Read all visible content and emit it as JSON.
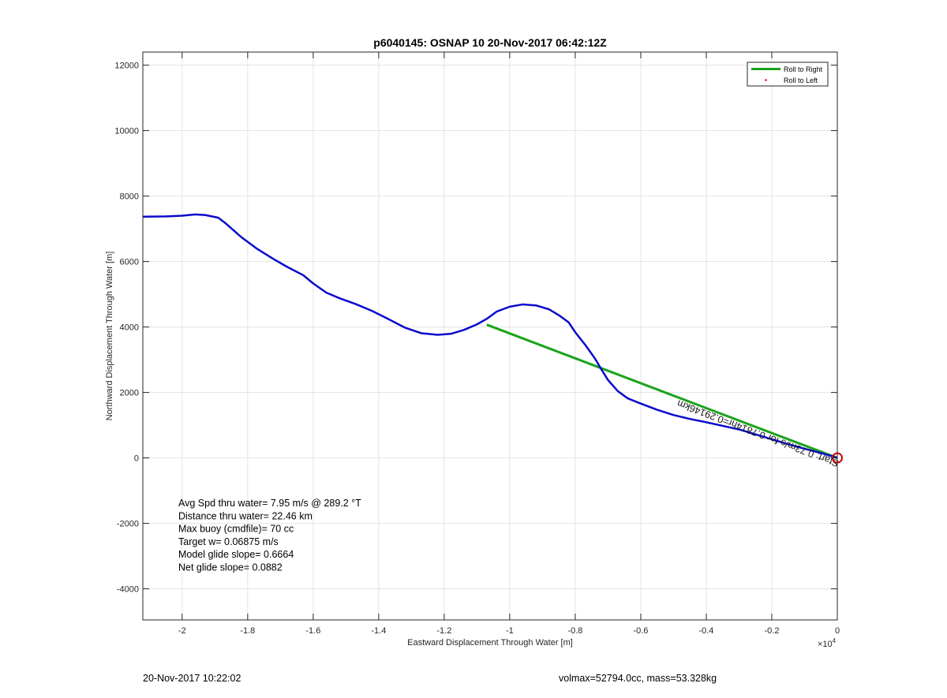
{
  "chart_data": {
    "type": "line",
    "title": "p6040145: OSNAP 10 20-Nov-2017 06:42:12Z",
    "xlabel": "Eastward Displacement Through Water [m]",
    "ylabel": "Northward Displacement Through Water [m]",
    "x_exponent_label": "×10",
    "x_exponent_power": "4",
    "xlim": [
      -2.12,
      0
    ],
    "ylim": [
      -4950,
      12400
    ],
    "x_ticks": [
      -2,
      -1.8,
      -1.6,
      -1.4,
      -1.2,
      -1,
      -0.8,
      -0.6,
      -0.4,
      -0.2,
      0
    ],
    "x_tick_labels": [
      "-2",
      "-1.8",
      "-1.6",
      "-1.4",
      "-1.2",
      "-1",
      "-0.8",
      "-0.6",
      "-0.4",
      "-0.2",
      "0"
    ],
    "y_ticks": [
      -4000,
      -2000,
      0,
      2000,
      4000,
      6000,
      8000,
      10000,
      12000
    ],
    "y_tick_labels": [
      "-4000",
      "-2000",
      "0",
      "2000",
      "4000",
      "6000",
      "8000",
      "10000",
      "12000"
    ],
    "grid": true,
    "legend_placement": "top-right",
    "series": [
      {
        "name": "Roll to Right",
        "color": "#1aa31a",
        "x": [
          -1.07,
          0
        ],
        "y": [
          4070,
          0
        ]
      },
      {
        "name": "Roll to Left",
        "color": "#ff0000",
        "marker": "dot",
        "x": [],
        "y": []
      },
      {
        "color": "#0a0acc",
        "x": [
          -2.12,
          -2.05,
          -2.0,
          -1.96,
          -1.93,
          -1.89,
          -1.87,
          -1.82,
          -1.77,
          -1.72,
          -1.68,
          -1.63,
          -1.6,
          -1.56,
          -1.52,
          -1.47,
          -1.42,
          -1.37,
          -1.32,
          -1.27,
          -1.22,
          -1.18,
          -1.14,
          -1.1,
          -1.07,
          -1.04,
          -1.0,
          -0.96,
          -0.92,
          -0.88,
          -0.85,
          -0.82,
          -0.8,
          -0.77,
          -0.74,
          -0.72,
          -0.7,
          -0.67,
          -0.64,
          -0.6,
          -0.55,
          -0.5,
          -0.45,
          -0.4,
          -0.35,
          -0.3,
          -0.25,
          -0.2,
          -0.15,
          -0.1,
          -0.05,
          -0.02,
          0
        ],
        "y": [
          7370,
          7380,
          7400,
          7440,
          7420,
          7340,
          7190,
          6750,
          6380,
          6070,
          5840,
          5580,
          5330,
          5050,
          4880,
          4700,
          4490,
          4240,
          3980,
          3810,
          3760,
          3790,
          3910,
          4080,
          4250,
          4470,
          4620,
          4690,
          4660,
          4540,
          4360,
          4140,
          3840,
          3460,
          3040,
          2700,
          2380,
          2040,
          1820,
          1660,
          1470,
          1310,
          1190,
          1090,
          980,
          870,
          720,
          570,
          420,
          280,
          150,
          60,
          0
        ]
      }
    ],
    "start_marker": {
      "x": 0,
      "y": 0,
      "color": "#cc0000"
    },
    "path_text": "Start: 0.73m/s for 0.7814hr=0.29146km",
    "path_text_color": "#1a1a1a",
    "annotations": [
      "Avg Spd thru water=  7.95 m/s @ 289.2 °T",
      "Distance thru water= 22.46 km",
      "Max buoy (cmdfile)= 70 cc",
      "Target w= 0.06875 m/s",
      "Model glide slope= 0.6664",
      "Net glide slope= 0.0882"
    ]
  },
  "footer": {
    "left": "20-Nov-2017 10:22:02",
    "right": "volmax=52794.0cc, mass=53.328kg"
  }
}
